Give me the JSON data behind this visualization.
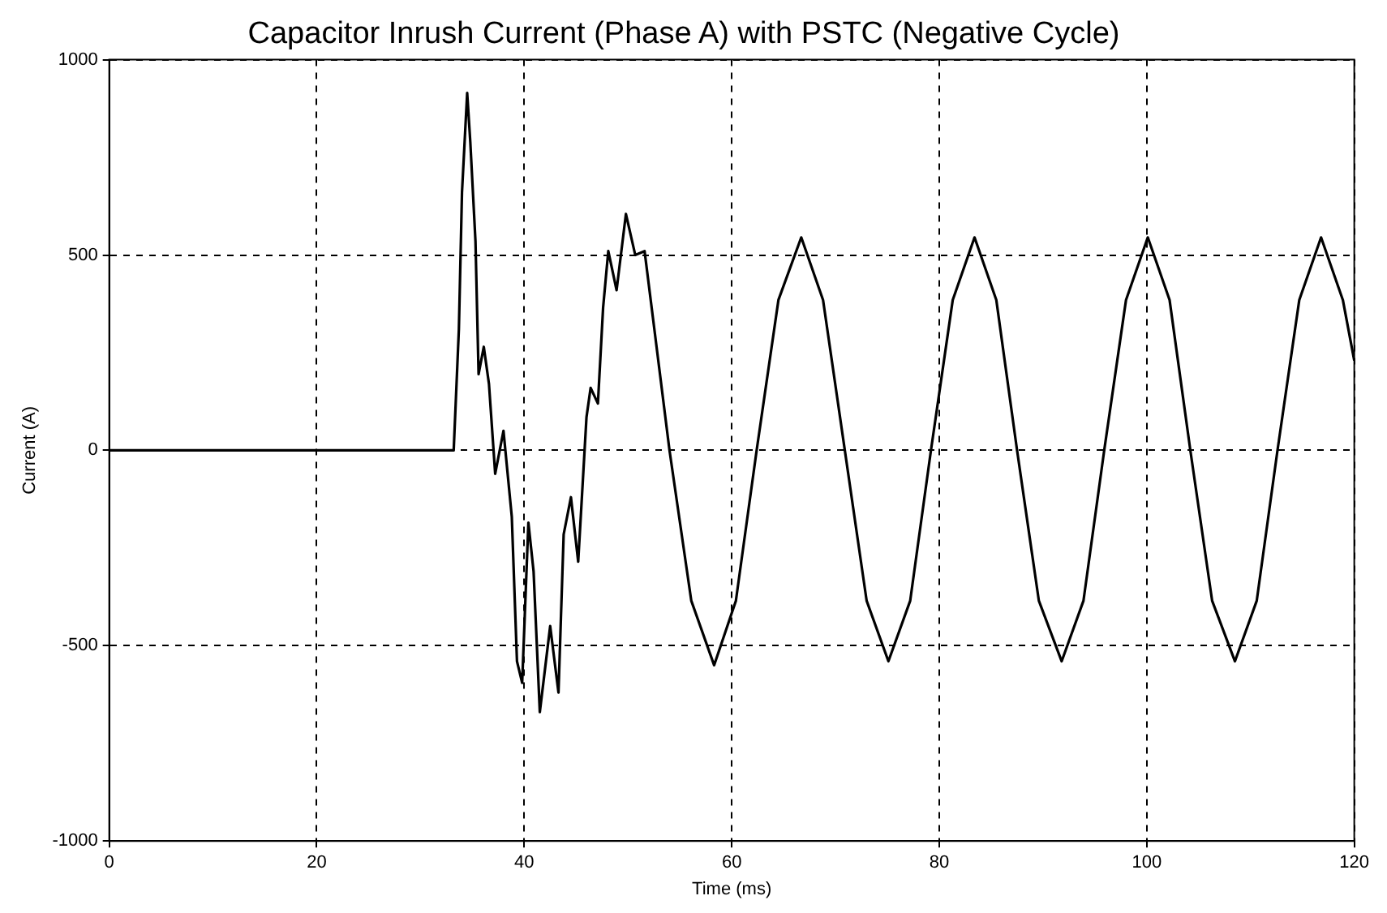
{
  "chart_data": {
    "type": "line",
    "title": "Capacitor Inrush Current (Phase A) with PSTC (Negative Cycle)",
    "xlabel": "Time (ms)",
    "ylabel": "Current (A)",
    "xlim": [
      0,
      120
    ],
    "xticks": [
      0,
      20,
      40,
      60,
      80,
      100,
      120
    ],
    "ylim": [
      -1000,
      1000
    ],
    "yticks": [
      -1000,
      -500,
      0,
      500,
      1000
    ],
    "grid": true,
    "marker": "none",
    "line_style": "solid",
    "series": [
      {
        "color": "#000000",
        "x": [
          0,
          33.2,
          33.7,
          34.0,
          34.5,
          34.8,
          35.3,
          35.6,
          36.1,
          36.6,
          37.2,
          38.0,
          38.8,
          39.3,
          39.8,
          40.4,
          40.9,
          41.5,
          42.5,
          43.3,
          43.8,
          44.5,
          45.2,
          46.0,
          46.4,
          47.1,
          47.6,
          48.1,
          48.9,
          49.8,
          50.7,
          51.6,
          52.4,
          54.0,
          56.1,
          58.3,
          60.4,
          62.4,
          64.5,
          66.7,
          68.8,
          70.9,
          73.0,
          75.1,
          77.2,
          79.2,
          81.3,
          83.4,
          85.5,
          87.5,
          89.6,
          91.8,
          93.9,
          95.9,
          98.0,
          100.1,
          102.2,
          104.2,
          106.3,
          108.5,
          110.6,
          112.6,
          114.7,
          116.8,
          118.9,
          120
        ],
        "values": [
          0,
          0,
          310,
          660,
          915,
          790,
          535,
          195,
          265,
          170,
          -60,
          50,
          -170,
          -540,
          -595,
          -185,
          -310,
          -670,
          -450,
          -620,
          -215,
          -120,
          -285,
          85,
          160,
          120,
          365,
          510,
          410,
          605,
          500,
          510,
          340,
          0,
          -385,
          -550,
          -385,
          0,
          385,
          545,
          385,
          0,
          -385,
          -540,
          -385,
          0,
          385,
          545,
          385,
          0,
          -385,
          -540,
          -385,
          0,
          385,
          545,
          385,
          0,
          -385,
          -540,
          -385,
          0,
          385,
          545,
          385,
          230
        ]
      }
    ]
  }
}
